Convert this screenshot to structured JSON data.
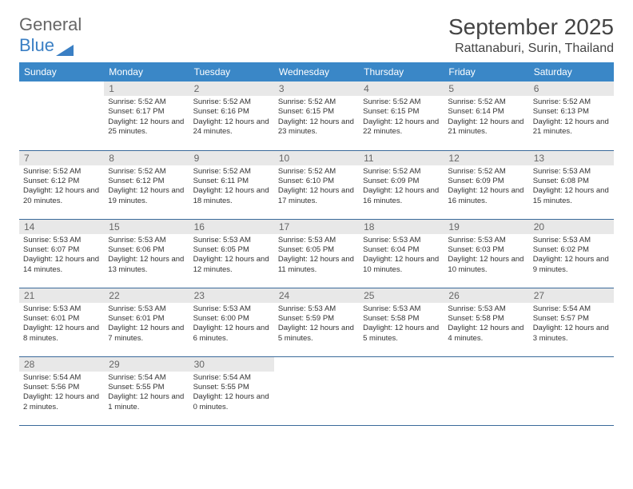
{
  "logo": {
    "text1": "General",
    "text2": "Blue"
  },
  "title": "September 2025",
  "location": "Rattanaburi, Surin, Thailand",
  "header_bg": "#3a87c7",
  "border_color": "#3a6a9a",
  "daynum_bg": "#e8e8e8",
  "weekdays": [
    "Sunday",
    "Monday",
    "Tuesday",
    "Wednesday",
    "Thursday",
    "Friday",
    "Saturday"
  ],
  "weeks": [
    [
      null,
      {
        "n": "1",
        "sr": "5:52 AM",
        "ss": "6:17 PM",
        "dl": "12 hours and 25 minutes."
      },
      {
        "n": "2",
        "sr": "5:52 AM",
        "ss": "6:16 PM",
        "dl": "12 hours and 24 minutes."
      },
      {
        "n": "3",
        "sr": "5:52 AM",
        "ss": "6:15 PM",
        "dl": "12 hours and 23 minutes."
      },
      {
        "n": "4",
        "sr": "5:52 AM",
        "ss": "6:15 PM",
        "dl": "12 hours and 22 minutes."
      },
      {
        "n": "5",
        "sr": "5:52 AM",
        "ss": "6:14 PM",
        "dl": "12 hours and 21 minutes."
      },
      {
        "n": "6",
        "sr": "5:52 AM",
        "ss": "6:13 PM",
        "dl": "12 hours and 21 minutes."
      }
    ],
    [
      {
        "n": "7",
        "sr": "5:52 AM",
        "ss": "6:12 PM",
        "dl": "12 hours and 20 minutes."
      },
      {
        "n": "8",
        "sr": "5:52 AM",
        "ss": "6:12 PM",
        "dl": "12 hours and 19 minutes."
      },
      {
        "n": "9",
        "sr": "5:52 AM",
        "ss": "6:11 PM",
        "dl": "12 hours and 18 minutes."
      },
      {
        "n": "10",
        "sr": "5:52 AM",
        "ss": "6:10 PM",
        "dl": "12 hours and 17 minutes."
      },
      {
        "n": "11",
        "sr": "5:52 AM",
        "ss": "6:09 PM",
        "dl": "12 hours and 16 minutes."
      },
      {
        "n": "12",
        "sr": "5:52 AM",
        "ss": "6:09 PM",
        "dl": "12 hours and 16 minutes."
      },
      {
        "n": "13",
        "sr": "5:53 AM",
        "ss": "6:08 PM",
        "dl": "12 hours and 15 minutes."
      }
    ],
    [
      {
        "n": "14",
        "sr": "5:53 AM",
        "ss": "6:07 PM",
        "dl": "12 hours and 14 minutes."
      },
      {
        "n": "15",
        "sr": "5:53 AM",
        "ss": "6:06 PM",
        "dl": "12 hours and 13 minutes."
      },
      {
        "n": "16",
        "sr": "5:53 AM",
        "ss": "6:05 PM",
        "dl": "12 hours and 12 minutes."
      },
      {
        "n": "17",
        "sr": "5:53 AM",
        "ss": "6:05 PM",
        "dl": "12 hours and 11 minutes."
      },
      {
        "n": "18",
        "sr": "5:53 AM",
        "ss": "6:04 PM",
        "dl": "12 hours and 10 minutes."
      },
      {
        "n": "19",
        "sr": "5:53 AM",
        "ss": "6:03 PM",
        "dl": "12 hours and 10 minutes."
      },
      {
        "n": "20",
        "sr": "5:53 AM",
        "ss": "6:02 PM",
        "dl": "12 hours and 9 minutes."
      }
    ],
    [
      {
        "n": "21",
        "sr": "5:53 AM",
        "ss": "6:01 PM",
        "dl": "12 hours and 8 minutes."
      },
      {
        "n": "22",
        "sr": "5:53 AM",
        "ss": "6:01 PM",
        "dl": "12 hours and 7 minutes."
      },
      {
        "n": "23",
        "sr": "5:53 AM",
        "ss": "6:00 PM",
        "dl": "12 hours and 6 minutes."
      },
      {
        "n": "24",
        "sr": "5:53 AM",
        "ss": "5:59 PM",
        "dl": "12 hours and 5 minutes."
      },
      {
        "n": "25",
        "sr": "5:53 AM",
        "ss": "5:58 PM",
        "dl": "12 hours and 5 minutes."
      },
      {
        "n": "26",
        "sr": "5:53 AM",
        "ss": "5:58 PM",
        "dl": "12 hours and 4 minutes."
      },
      {
        "n": "27",
        "sr": "5:54 AM",
        "ss": "5:57 PM",
        "dl": "12 hours and 3 minutes."
      }
    ],
    [
      {
        "n": "28",
        "sr": "5:54 AM",
        "ss": "5:56 PM",
        "dl": "12 hours and 2 minutes."
      },
      {
        "n": "29",
        "sr": "5:54 AM",
        "ss": "5:55 PM",
        "dl": "12 hours and 1 minute."
      },
      {
        "n": "30",
        "sr": "5:54 AM",
        "ss": "5:55 PM",
        "dl": "12 hours and 0 minutes."
      },
      null,
      null,
      null,
      null
    ]
  ],
  "labels": {
    "sunrise": "Sunrise:",
    "sunset": "Sunset:",
    "daylight": "Daylight:"
  }
}
